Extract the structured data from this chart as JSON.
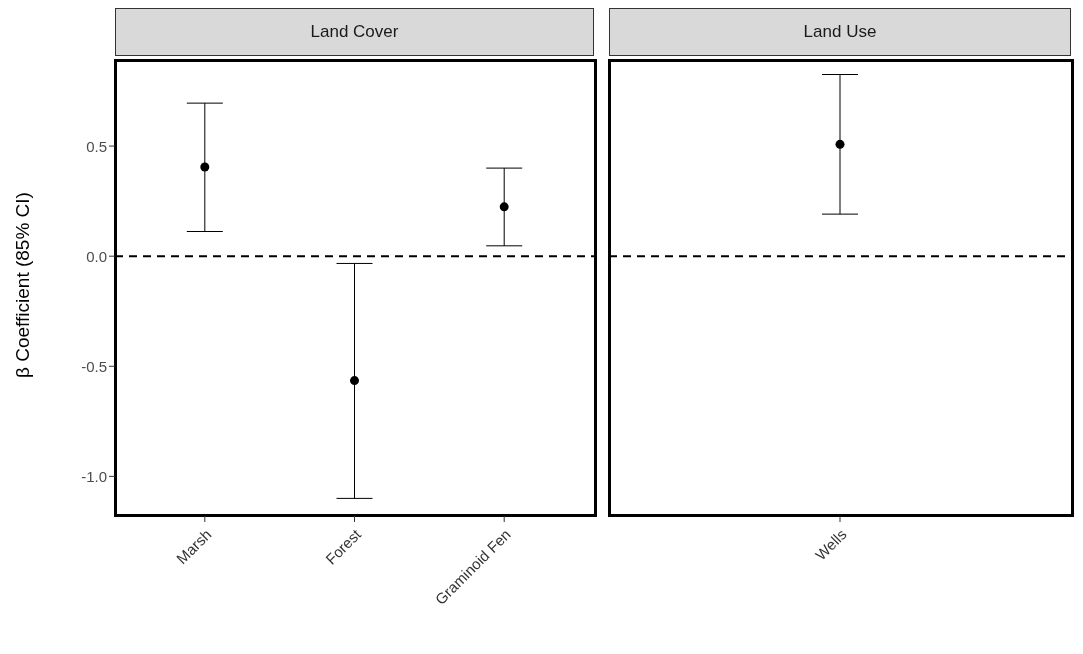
{
  "chart_data": [
    {
      "type": "scatter",
      "title": "Land Cover",
      "ylabel": "β Coefficient (85% CI)",
      "categories": [
        "Marsh",
        "Forest",
        "Graminoid Fen"
      ],
      "values": [
        0.405,
        -0.565,
        0.224
      ],
      "errors": [
        [
          0.112,
          0.695
        ],
        [
          -1.1,
          -0.033
        ],
        [
          0.047,
          0.4
        ]
      ],
      "color": "#000000",
      "marker": "circle",
      "ylim": [
        -1.18,
        0.9
      ],
      "yticks": [
        {
          "value": -1,
          "label": "-1.0"
        },
        -0.5,
        {
          "value": 0,
          "label": "0.0"
        },
        0.5
      ],
      "ref_lines": [
        {
          "axis": "y",
          "value": 0,
          "line_style": "dashed"
        }
      ],
      "grid": false
    },
    {
      "type": "scatter",
      "title": "Land Use",
      "categories": [
        "Wells"
      ],
      "values": [
        0.508
      ],
      "errors": [
        [
          0.191,
          0.825
        ]
      ],
      "color": "#000000",
      "marker": "circle",
      "ylim": [
        -1.18,
        0.9
      ],
      "ref_lines": [
        {
          "axis": "y",
          "value": 0,
          "line_style": "dashed"
        }
      ],
      "grid": false,
      "tick_labels": "x"
    }
  ]
}
